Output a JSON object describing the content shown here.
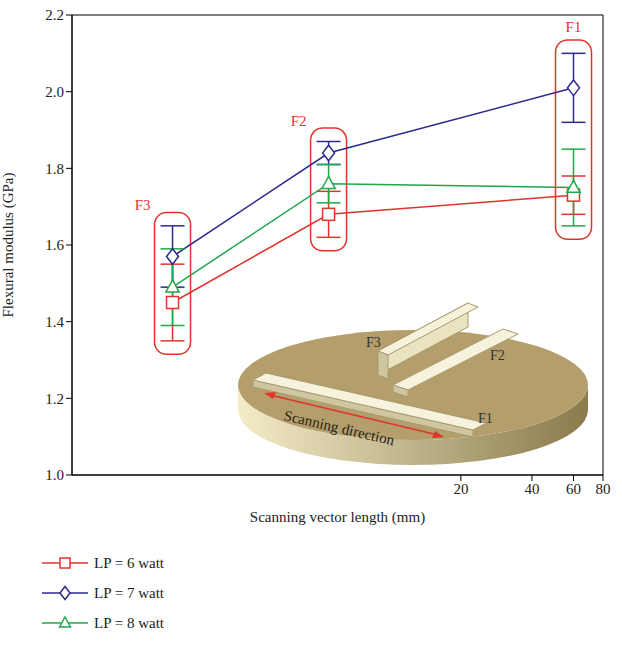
{
  "chart_data": {
    "type": "line",
    "x_label": "Scanning vector length (mm)",
    "y_label": "Flexural modulus (GPa)",
    "log": "x",
    "grid": false,
    "legend": "bottom",
    "xlim": [
      0.45,
      80
    ],
    "xticks": [
      20,
      40,
      60,
      80
    ],
    "ylim": [
      1.0,
      2.2
    ],
    "yticks": [
      {
        "value": 1.0,
        "label": "1.0"
      },
      {
        "value": 1.2,
        "label": "1.2"
      },
      {
        "value": 1.4,
        "label": "1.4"
      },
      {
        "value": 1.6,
        "label": "1.6"
      },
      {
        "value": 1.8,
        "label": "1.8"
      },
      {
        "value": 2.0,
        "label": "2.0"
      },
      {
        "value": 2.2,
        "label": "2.2"
      }
    ],
    "x": [
      1.2,
      5.5,
      60
    ],
    "annotations": [
      "F3",
      "F2",
      "F1"
    ],
    "series": [
      {
        "name": "LP = 6 watt",
        "color": "#e0352b",
        "marker": "square",
        "values": [
          1.45,
          1.68,
          1.73
        ],
        "errors": [
          0.1,
          0.06,
          0.05
        ]
      },
      {
        "name": "LP = 7 watt",
        "color": "#2d2a8c",
        "marker": "diamond",
        "values": [
          1.57,
          1.84,
          2.01
        ],
        "errors": [
          0.08,
          0.03,
          0.09
        ]
      },
      {
        "name": "LP = 8 watt",
        "color": "#1fa84a",
        "marker": "triangle",
        "values": [
          1.49,
          1.76,
          1.75
        ],
        "errors": [
          0.1,
          0.05,
          0.1
        ]
      }
    ],
    "inset": {
      "labels": [
        "F1",
        "F2",
        "F3"
      ],
      "caption": "Scanning direction"
    }
  }
}
